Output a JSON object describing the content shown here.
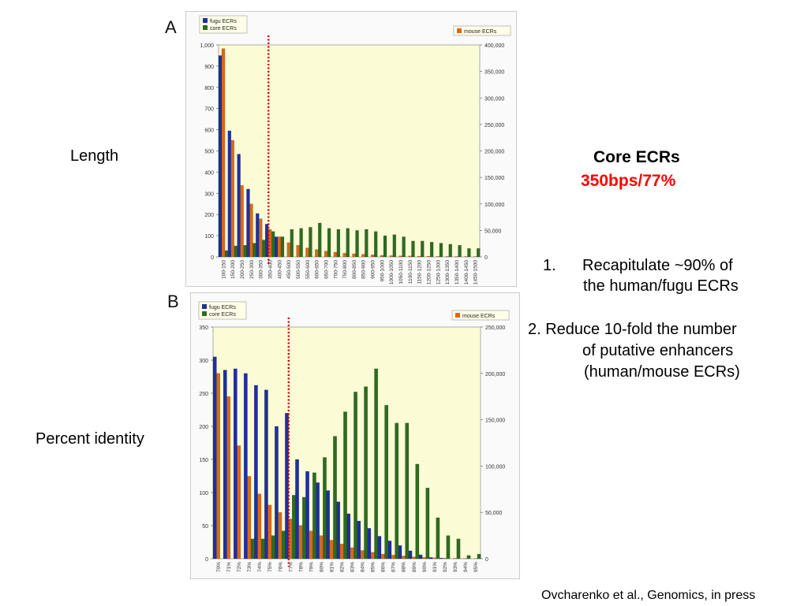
{
  "labels": {
    "length": "Length",
    "percent_identity": "Percent identity"
  },
  "core": {
    "title": "Core ECRs",
    "value": "350bps/77%",
    "value_color": "#ff0000"
  },
  "points": {
    "p1_num": "1.",
    "p1_line1": "Recapitulate ~90% of",
    "p1_line2": "the human/fugu ECRs",
    "p2_line1": "2. Reduce 10-fold the number",
    "p2_line2": "of putative enhancers",
    "p2_line3": "(human/mouse ECRs)"
  },
  "citation": "Ovcharenko et al., Genomics, in press",
  "colors": {
    "fugu": "#1f2f9c",
    "core": "#2e6b1f",
    "mouse": "#d8691c",
    "plot_bg": "#fbfbd6",
    "threshold": "#cc0000"
  },
  "chart_data": [
    {
      "panel": "A",
      "type": "bar",
      "legend_left": [
        "fugu ECRs",
        "core ECRs"
      ],
      "legend_right": [
        "mouse ECRs"
      ],
      "categories": [
        "100-150",
        "150-200",
        "200-250",
        "250-300",
        "300-350",
        "350-400",
        "400-450",
        "450-500",
        "500-550",
        "550-600",
        "600-650",
        "650-700",
        "700-750",
        "750-800",
        "800-850",
        "850-900",
        "900-950",
        "950-1000",
        "1000-1050",
        "1050-1100",
        "1100-1150",
        "1150-1200",
        "1200-1250",
        "1250-1300",
        "1300-1350",
        "1350-1400",
        "1400-1450",
        "1450-1500"
      ],
      "y_left_ticks": [
        "0",
        "100",
        "200",
        "300",
        "400",
        "500",
        "600",
        "700",
        "800",
        "900",
        "1,000"
      ],
      "y_left_range": [
        0,
        1000
      ],
      "y_right_ticks": [
        "0",
        "50,000",
        "100,000",
        "150,000",
        "200,000",
        "250,000",
        "300,000",
        "350,000",
        "400,000"
      ],
      "y_right_range": [
        0,
        400000
      ],
      "threshold_category_index": 5,
      "series": [
        {
          "name": "fugu ECRs",
          "axis": "left",
          "values": [
            950,
            595,
            485,
            320,
            205,
            155,
            95,
            0,
            0,
            0,
            0,
            0,
            0,
            0,
            0,
            0,
            0,
            0,
            0,
            0,
            0,
            0,
            0,
            0,
            0,
            0,
            0,
            0
          ]
        },
        {
          "name": "mouse ECRs",
          "axis": "right",
          "values": [
            393000,
            220000,
            135000,
            100000,
            72000,
            52000,
            38000,
            27000,
            22000,
            17000,
            14000,
            11000,
            9000,
            7000,
            6000,
            5000,
            4000,
            3000,
            2500,
            2000,
            1800,
            1500,
            1300,
            1100,
            1000,
            900,
            800,
            700
          ]
        },
        {
          "name": "core ECRs",
          "axis": "left",
          "values": [
            30,
            52,
            55,
            65,
            80,
            120,
            95,
            130,
            135,
            140,
            160,
            135,
            130,
            135,
            125,
            130,
            120,
            100,
            105,
            95,
            75,
            75,
            70,
            65,
            60,
            55,
            40,
            40
          ]
        }
      ]
    },
    {
      "panel": "B",
      "type": "bar",
      "legend_left": [
        "fugu ECRs",
        "core ECRs"
      ],
      "legend_right": [
        "mouse ECRs"
      ],
      "categories": [
        "70%",
        "71%",
        "72%",
        "73%",
        "74%",
        "75%",
        "76%",
        "77%",
        "78%",
        "79%",
        "80%",
        "81%",
        "82%",
        "83%",
        "84%",
        "85%",
        "86%",
        "87%",
        "88%",
        "89%",
        "90%",
        "91%",
        "92%",
        "93%",
        "94%",
        "95%"
      ],
      "y_left_ticks": [
        "0",
        "50",
        "100",
        "150",
        "200",
        "250",
        "300",
        "350"
      ],
      "y_left_range": [
        0,
        350
      ],
      "y_right_ticks": [
        "0",
        "50,000",
        "100,000",
        "150,000",
        "200,000",
        "250,000"
      ],
      "y_right_range": [
        0,
        250000
      ],
      "threshold_category_index": 7,
      "series": [
        {
          "name": "fugu ECRs",
          "axis": "left",
          "values": [
            305,
            285,
            287,
            280,
            262,
            255,
            200,
            220,
            150,
            132,
            115,
            103,
            86,
            68,
            57,
            46,
            34,
            27,
            20,
            12,
            6,
            2,
            1,
            0,
            0,
            0
          ]
        },
        {
          "name": "mouse ECRs",
          "axis": "right",
          "values": [
            200000,
            175000,
            122000,
            89000,
            70000,
            58000,
            50000,
            43000,
            36000,
            30000,
            25000,
            20000,
            16000,
            12000,
            9000,
            7000,
            5000,
            4000,
            3000,
            2000,
            1500,
            1000,
            700,
            500,
            300,
            200
          ]
        },
        {
          "name": "core ECRs",
          "axis": "left",
          "values": [
            0,
            0,
            0,
            30,
            30,
            35,
            42,
            96,
            93,
            130,
            153,
            185,
            222,
            252,
            260,
            287,
            232,
            205,
            205,
            143,
            107,
            62,
            35,
            30,
            5,
            7
          ]
        }
      ]
    }
  ]
}
